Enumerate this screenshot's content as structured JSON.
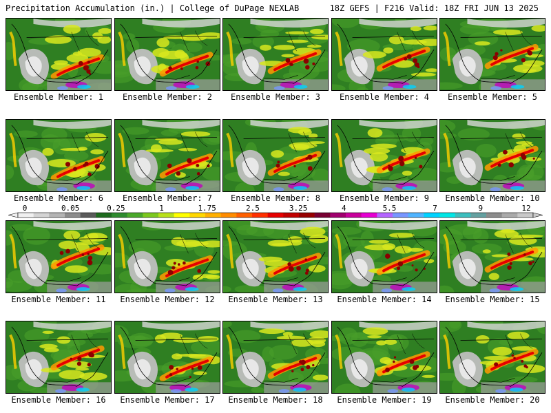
{
  "header": {
    "title_left": "Precipitation Accumulation (in.) | College of DuPage NEXLAB",
    "title_right": "18Z GEFS | F216 Valid: 18Z FRI JUN 13 2025"
  },
  "panels": [
    {
      "label": "Ensemble Member: 1"
    },
    {
      "label": "Ensemble Member: 2"
    },
    {
      "label": "Ensemble Member: 3"
    },
    {
      "label": "Ensemble Member: 4"
    },
    {
      "label": "Ensemble Member: 5"
    },
    {
      "label": "Ensemble Member: 6"
    },
    {
      "label": "Ensemble Member: 7"
    },
    {
      "label": "Ensemble Member: 8"
    },
    {
      "label": "Ensemble Member: 9"
    },
    {
      "label": "Ensemble Member: 10"
    },
    {
      "label": "Ensemble Member: 11"
    },
    {
      "label": "Ensemble Member: 12"
    },
    {
      "label": "Ensemble Member: 13"
    },
    {
      "label": "Ensemble Member: 14"
    },
    {
      "label": "Ensemble Member: 15"
    },
    {
      "label": "Ensemble Member: 16"
    },
    {
      "label": "Ensemble Member: 17"
    },
    {
      "label": "Ensemble Member: 18"
    },
    {
      "label": "Ensemble Member: 19"
    },
    {
      "label": "Ensemble Member: 20"
    }
  ],
  "colorbar": {
    "tick_labels": [
      "0",
      "0.05",
      "0.25",
      "1",
      "1.75",
      "2.5",
      "3.25",
      "4",
      "5.5",
      "7",
      "9",
      "12"
    ],
    "colors": [
      "#f0f0f0",
      "#d4d4d4",
      "#b4b4b4",
      "#8c8c8c",
      "#5a5a5a",
      "#1e6b1e",
      "#2e8b2e",
      "#4aa82a",
      "#7cc81e",
      "#b8e01a",
      "#ffff00",
      "#ffd700",
      "#ffb000",
      "#ff8c00",
      "#ff6000",
      "#ff3000",
      "#e60000",
      "#c00000",
      "#960000",
      "#780032",
      "#a0006e",
      "#c8009b",
      "#e600d2",
      "#b464ff",
      "#7896ff",
      "#50b4ff",
      "#00d2ff",
      "#00e6e6",
      "#3cbebe",
      "#64a0a0",
      "#8c8c8c",
      "#aaaaaa",
      "#c8c8c8"
    ]
  }
}
